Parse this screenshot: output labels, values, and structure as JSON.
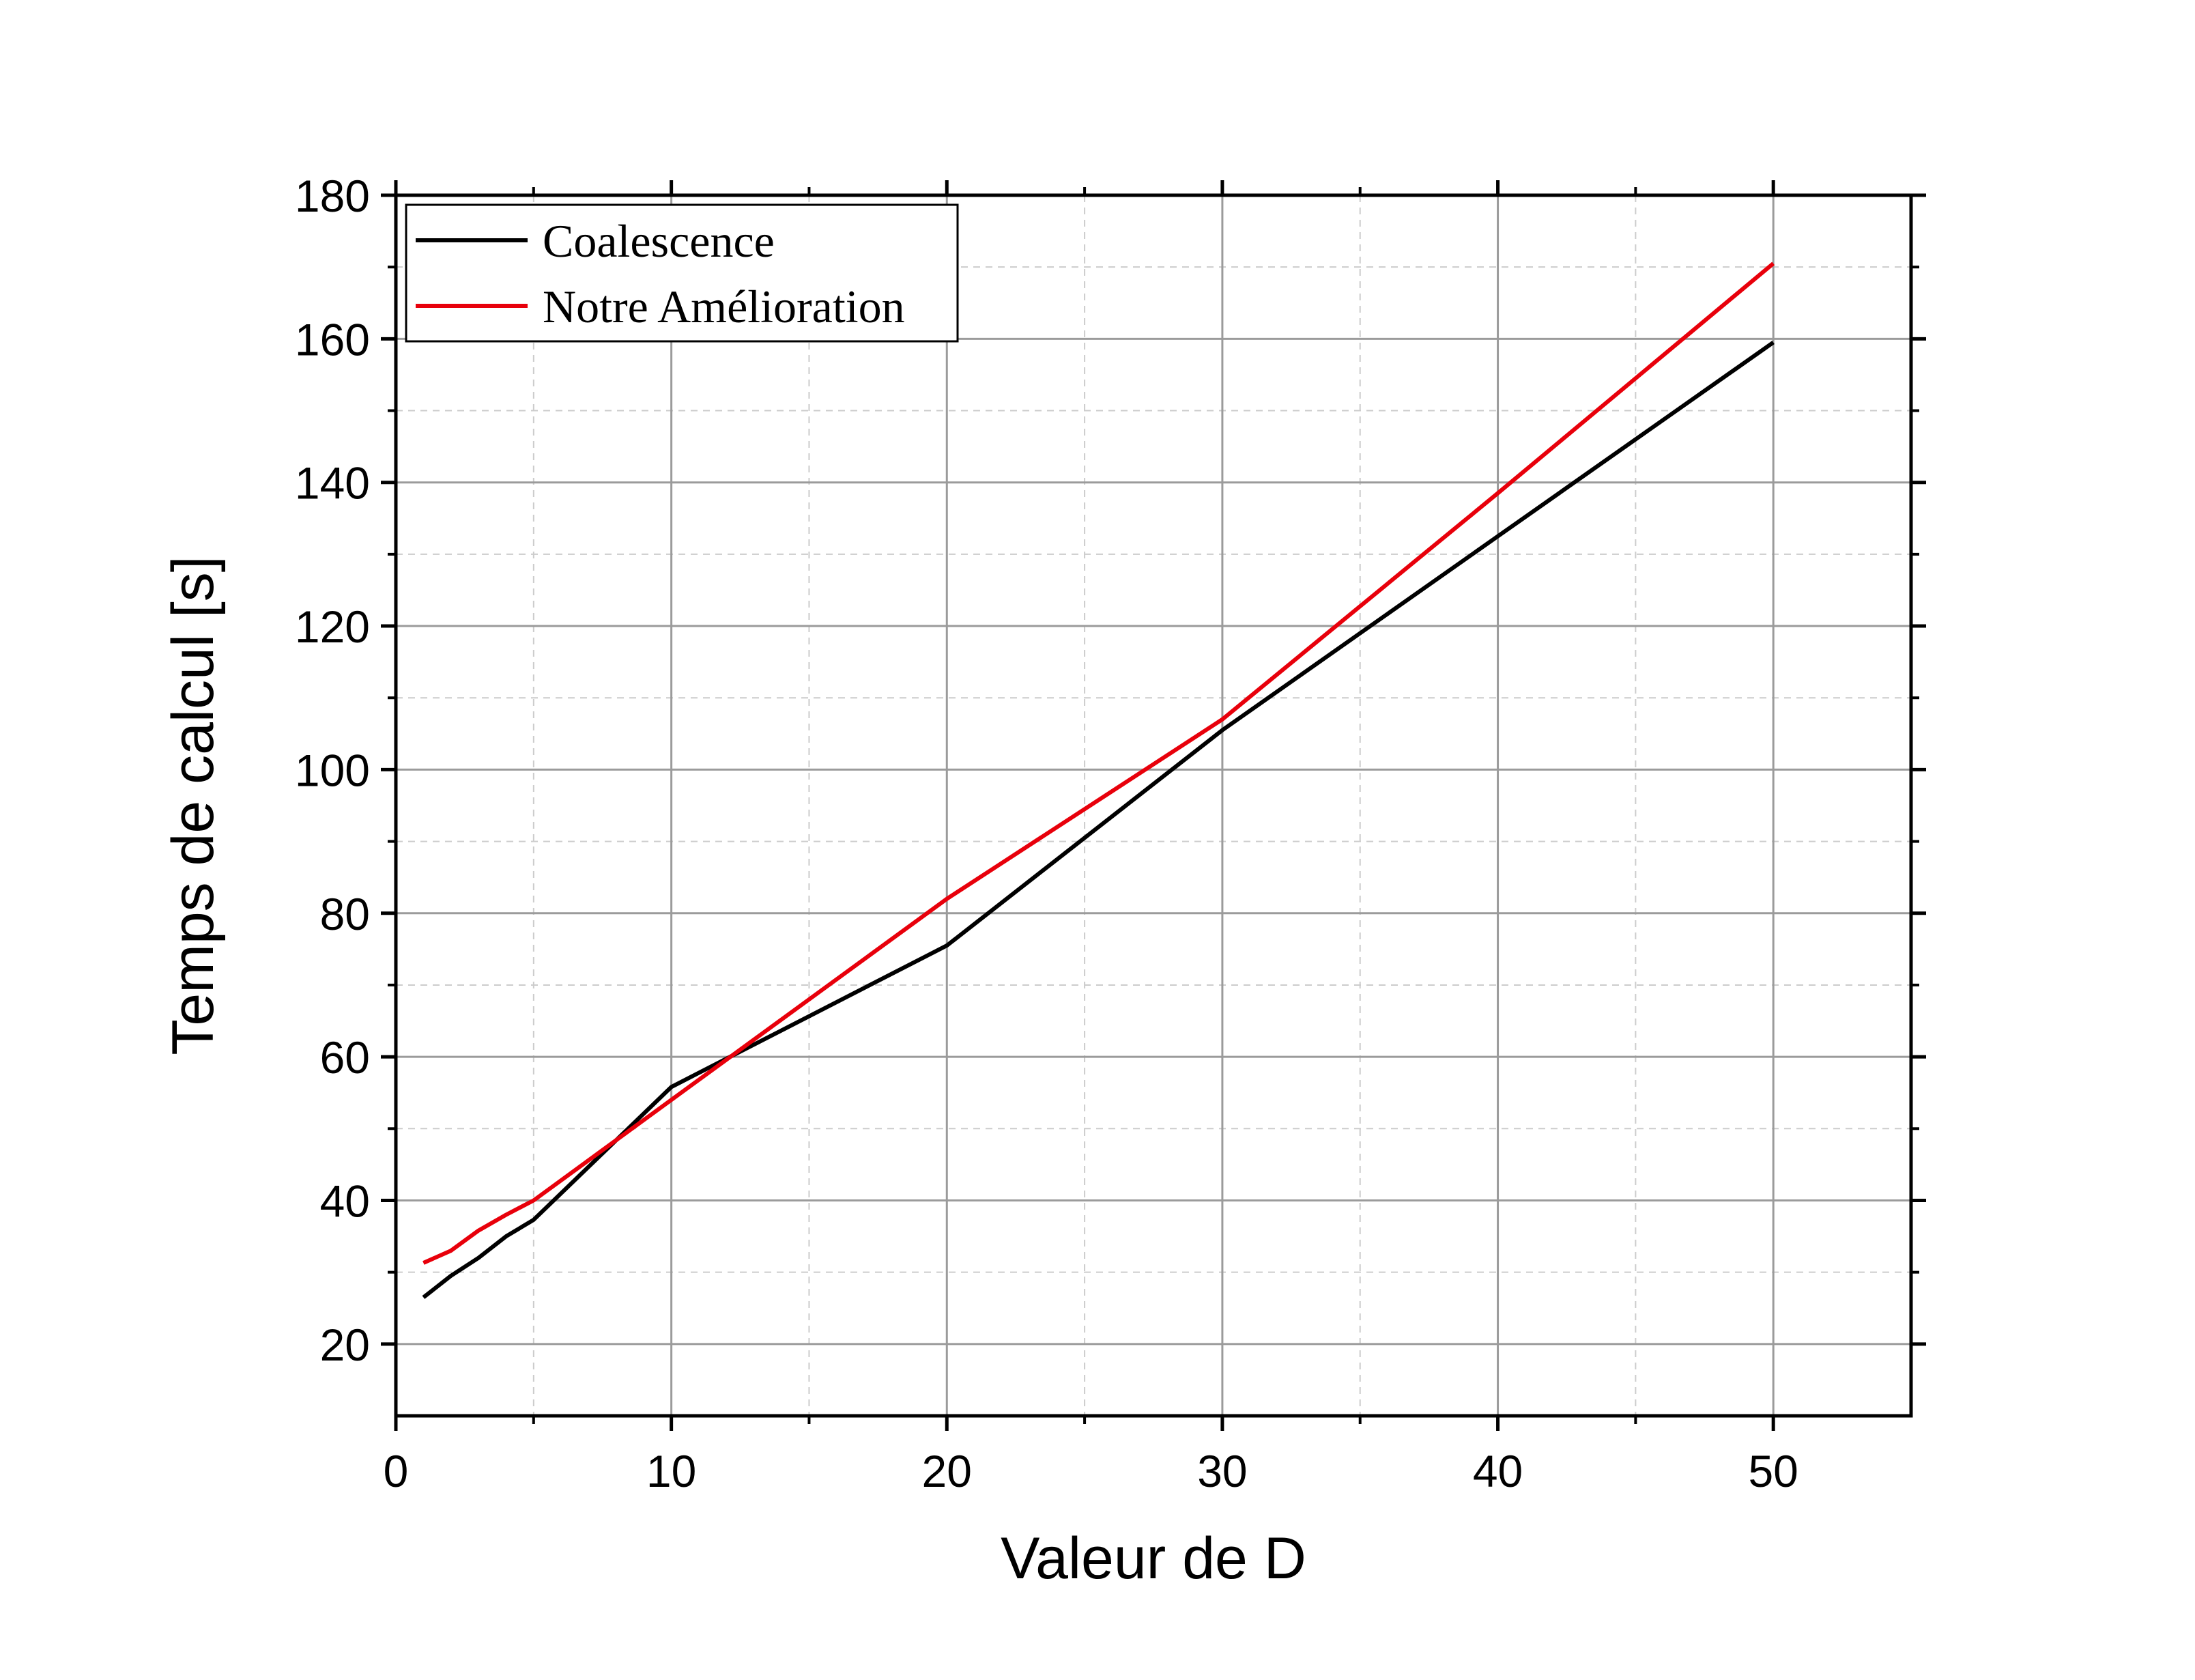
{
  "chart_data": {
    "type": "line",
    "xlabel": "Valeur de D",
    "ylabel": "Temps de calcul [s]",
    "xlim": [
      0,
      55
    ],
    "ylim": [
      10,
      180
    ],
    "x_ticks": [
      0,
      10,
      20,
      30,
      40,
      50
    ],
    "y_ticks": [
      20,
      40,
      60,
      80,
      100,
      120,
      140,
      160,
      180
    ],
    "x_tick_labels": [
      "0",
      "10",
      "20",
      "30",
      "40",
      "50"
    ],
    "y_tick_labels": [
      "20",
      "40",
      "60",
      "80",
      "100",
      "120",
      "140",
      "160",
      "180"
    ],
    "grid": true,
    "legend_position": "top-left",
    "series": [
      {
        "name": "Coalescence",
        "color": "#000000",
        "x": [
          1,
          2,
          3,
          4,
          5,
          10,
          20,
          30,
          40,
          50
        ],
        "y": [
          26.5,
          29.5,
          32,
          35,
          37.3,
          55.8,
          75.5,
          105.5,
          132.5,
          159.5
        ]
      },
      {
        "name": "Notre Amélioration",
        "color": "#e8000b",
        "x": [
          1,
          2,
          3,
          4,
          5,
          10,
          20,
          30,
          40,
          50
        ],
        "y": [
          31.3,
          33,
          35.8,
          38,
          40,
          54,
          82,
          107,
          138.5,
          170.5
        ]
      }
    ]
  }
}
